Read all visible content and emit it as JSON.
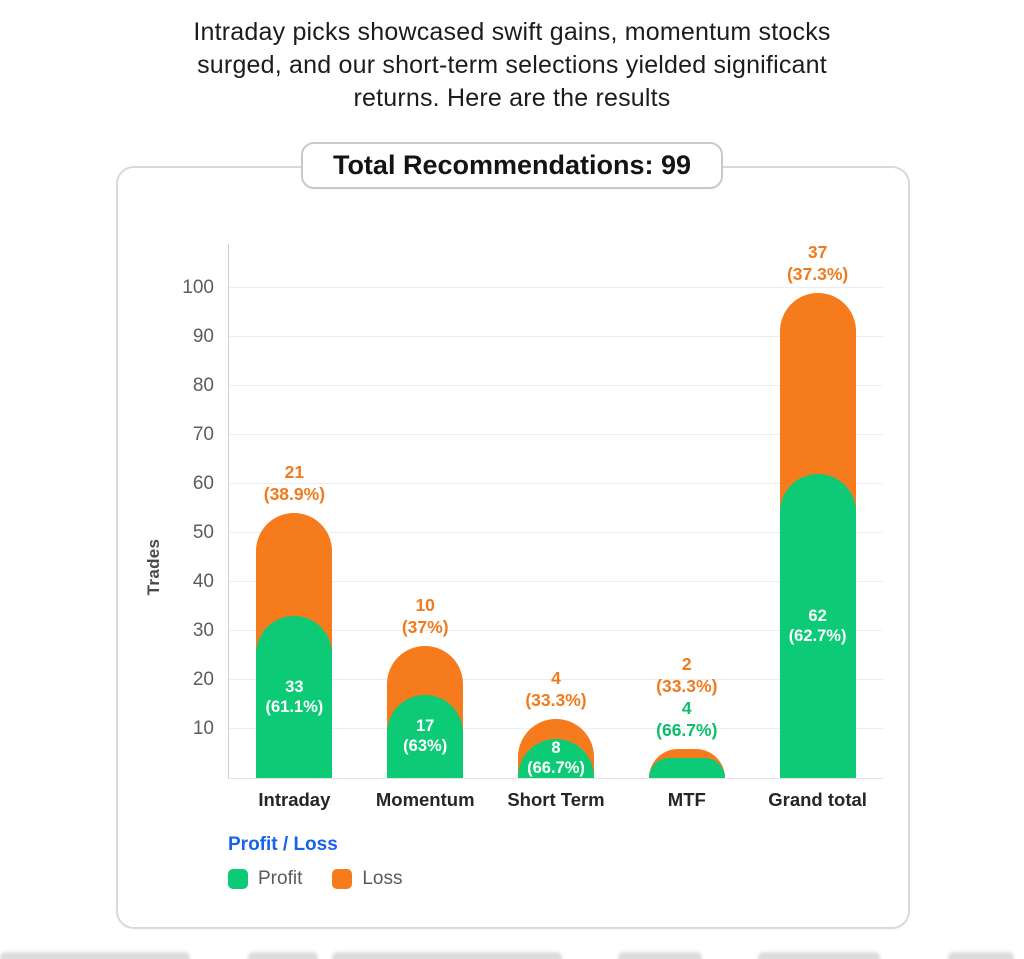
{
  "header": {
    "title_lines": [
      "Intraday picks showcased swift gains, momentum stocks",
      "surged, and our short-term selections yielded significant",
      "returns. Here are the results"
    ],
    "badge": "Total Recommendations: 99"
  },
  "chart_data": {
    "type": "bar",
    "stacked": true,
    "ylabel": "Trades",
    "yticks": [
      10,
      20,
      30,
      40,
      50,
      60,
      70,
      80,
      90,
      100
    ],
    "ylim": [
      0,
      109
    ],
    "grid": "horizontal",
    "categories": [
      "Intraday",
      "Momentum",
      "Short Term",
      "MTF",
      "Grand total"
    ],
    "series": [
      {
        "name": "Profit",
        "color": "#0cca75",
        "values": [
          33,
          17,
          8,
          4,
          62
        ],
        "pct_labels": [
          "(61.1%)",
          "(63%)",
          "(66.7%)",
          "(66.7%)",
          "(62.7%)"
        ]
      },
      {
        "name": "Loss",
        "color": "#f57b1d",
        "values": [
          21,
          10,
          4,
          2,
          37
        ],
        "pct_labels": [
          "(38.9%)",
          "(37%)",
          "(33.3%)",
          "(33.3%)",
          "(37.3%)"
        ]
      }
    ],
    "totals": [
      54,
      27,
      12,
      6,
      99
    ],
    "profit_label_position": [
      "inside",
      "inside",
      "inside",
      "above",
      "inside"
    ],
    "colors": {
      "profit": "#0cca75",
      "loss": "#f57b1d",
      "profit_text": "#0cbd6e",
      "loss_text": "#ef7b1e",
      "inside_text": "#ffffff"
    }
  },
  "legend": {
    "title": "Profit / Loss",
    "title_color": "#1763ef",
    "items": [
      {
        "label": "Profit",
        "color": "#0cca75"
      },
      {
        "label": "Loss",
        "color": "#f57b1d"
      }
    ]
  }
}
